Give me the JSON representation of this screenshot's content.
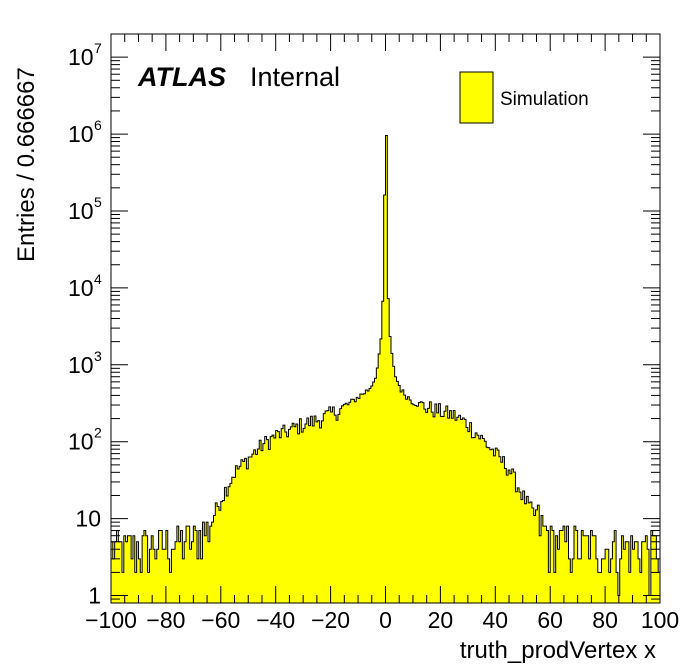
{
  "chart_data": {
    "type": "histogram",
    "xlabel": "truth_prodVertex x",
    "ylabel": "Entries / 0.666667",
    "xlim": [
      -100,
      100
    ],
    "ylim": [
      0.8,
      20000000
    ],
    "log_y": true,
    "grid": false,
    "bin_width": 0.666667,
    "x_ticks": [
      "−100",
      "−80",
      "−60",
      "−40",
      "−20",
      "0",
      "20",
      "40",
      "60",
      "80",
      "100"
    ],
    "y_ticks": [
      {
        "label": "1",
        "exp": "",
        "value": 1
      },
      {
        "label": "10",
        "exp": "",
        "value": 10
      },
      {
        "label": "10",
        "exp": "2",
        "value": 100
      },
      {
        "label": "10",
        "exp": "3",
        "value": 1000
      },
      {
        "label": "10",
        "exp": "4",
        "value": 10000
      },
      {
        "label": "10",
        "exp": "5",
        "value": 100000
      },
      {
        "label": "10",
        "exp": "6",
        "value": 1000000
      },
      {
        "label": "10",
        "exp": "7",
        "value": 10000000
      }
    ],
    "series": [
      {
        "name": "Simulation",
        "color": "#ffff00",
        "edge_color": "#000000"
      }
    ],
    "shape_points": [
      [
        -100,
        4
      ],
      [
        -90,
        4
      ],
      [
        -80,
        4.5
      ],
      [
        -70,
        5
      ],
      [
        -65,
        7
      ],
      [
        -60,
        18
      ],
      [
        -55,
        40
      ],
      [
        -50,
        60
      ],
      [
        -45,
        90
      ],
      [
        -40,
        120
      ],
      [
        -35,
        140
      ],
      [
        -30,
        170
      ],
      [
        -25,
        190
      ],
      [
        -20,
        230
      ],
      [
        -15,
        280
      ],
      [
        -10,
        380
      ],
      [
        -6,
        480
      ],
      [
        -4,
        650
      ],
      [
        -3,
        900
      ],
      [
        -2,
        1500
      ],
      [
        -1.3,
        3000
      ],
      [
        -0.7,
        15000
      ],
      [
        -0.3,
        200000
      ],
      [
        0,
        1400000
      ],
      [
        0.3,
        1400000
      ],
      [
        0.7,
        15000
      ],
      [
        1.3,
        3500
      ],
      [
        2,
        1600
      ],
      [
        3,
        900
      ],
      [
        4,
        650
      ],
      [
        6,
        450
      ],
      [
        10,
        330
      ],
      [
        15,
        280
      ],
      [
        20,
        250
      ],
      [
        25,
        220
      ],
      [
        30,
        170
      ],
      [
        35,
        110
      ],
      [
        40,
        70
      ],
      [
        45,
        45
      ],
      [
        50,
        20
      ],
      [
        55,
        10
      ],
      [
        60,
        5
      ],
      [
        70,
        4.5
      ],
      [
        80,
        4
      ],
      [
        90,
        4
      ],
      [
        100,
        4
      ]
    ],
    "legend_position": "top-right"
  },
  "labels": {
    "atlas": "ATLAS",
    "internal": "Internal",
    "legend_entry": "Simulation"
  }
}
